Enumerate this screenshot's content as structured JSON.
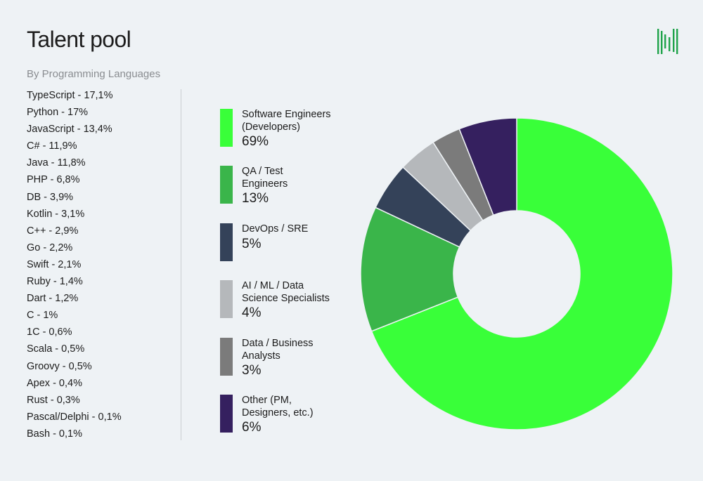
{
  "header": {
    "title": "Talent pool",
    "subtitle": "By Programming Languages",
    "logo_icon": "brand-logo-icon"
  },
  "languages": [
    "TypeScript - 17,1%",
    "Python - 17%",
    "JavaScript - 13,4%",
    "C# - 11,9%",
    "Java - 11,8%",
    "PHP - 6,8%",
    "DB - 3,9%",
    "Kotlin - 3,1%",
    "C++ - 2,9%",
    "Go - 2,2%",
    "Swift - 2,1%",
    "Ruby - 1,4%",
    "Dart - 1,2%",
    "C - 1%",
    "1C - 0,6%",
    "Scala - 0,5%",
    "Groovy - 0,5%",
    "Apex - 0,4%",
    "Rust - 0,3%",
    "Pascal/Delphi - 0,1%",
    "Bash - 0,1%"
  ],
  "chart_data": {
    "type": "pie",
    "variant": "donut",
    "title": "",
    "legend_position": "left",
    "slices": [
      {
        "label_lines": [
          "Software Engineers",
          "(Developers)"
        ],
        "value": 69,
        "value_label": "69%",
        "color": "#39ff39"
      },
      {
        "label_lines": [
          "QA / Test",
          "Engineers"
        ],
        "value": 13,
        "value_label": "13%",
        "color": "#3ab54a"
      },
      {
        "label_lines": [
          "DevOps / SRE"
        ],
        "value": 5,
        "value_label": "5%",
        "color": "#344259"
      },
      {
        "label_lines": [
          "AI / ML / Data",
          "Science Specialists"
        ],
        "value": 4,
        "value_label": "4%",
        "color": "#b5b8bb"
      },
      {
        "label_lines": [
          "Data / Business",
          "Analysts"
        ],
        "value": 3,
        "value_label": "3%",
        "color": "#7b7b7b"
      },
      {
        "label_lines": [
          "Other (PM,",
          "Designers, etc.)"
        ],
        "value": 6,
        "value_label": "6%",
        "color": "#35205f"
      }
    ]
  }
}
